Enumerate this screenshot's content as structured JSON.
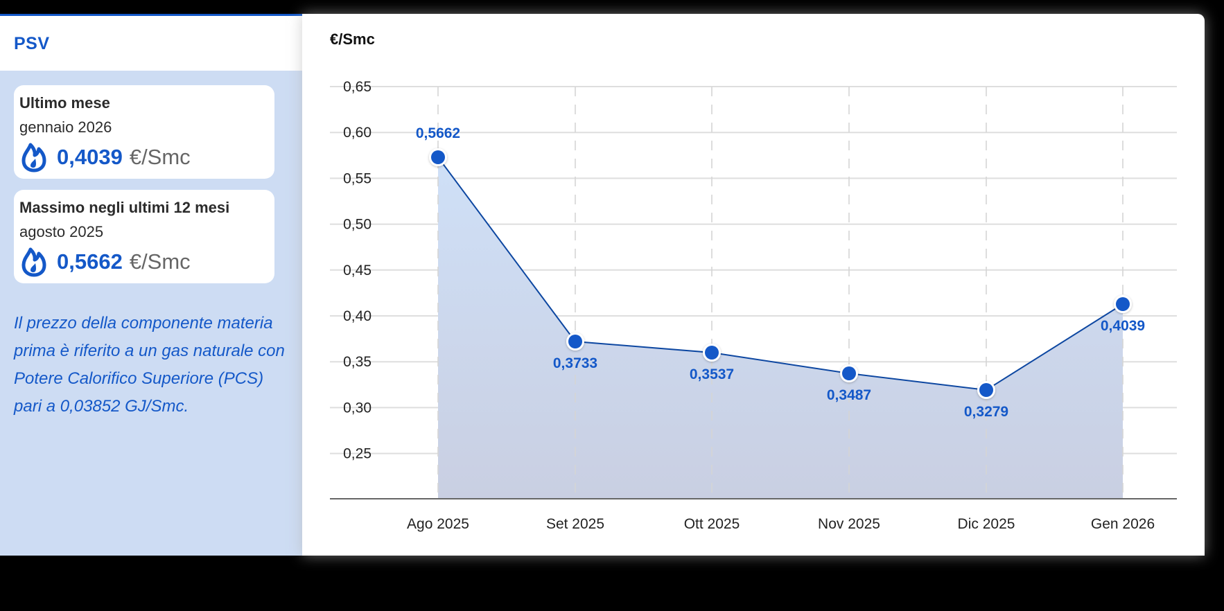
{
  "panel": {
    "title": "PSV",
    "cards": [
      {
        "title": "Ultimo mese",
        "date": "gennaio 2026",
        "value": "0,4039",
        "unit": "€/Smc",
        "icon": "gas-flame-icon"
      },
      {
        "title": "Massimo negli ultimi 12 mesi",
        "date": "agosto 2025",
        "value": "0,5662",
        "unit": "€/Smc",
        "icon": "gas-flame-icon"
      }
    ],
    "note": "Il prezzo della componente materia prima è riferito a un gas naturale con Potere Calorifico Superiore (PCS) pari a 0,03852 GJ/Smc."
  },
  "colors": {
    "accent": "#1458c8",
    "panel_bg": "#cddcf3",
    "fill_top": "#cfe0f7",
    "fill_bottom": "#c9cfe2",
    "line": "#0d47a1"
  },
  "chart_data": {
    "type": "area",
    "title": "",
    "ylabel": "€/Smc",
    "xlabel": "",
    "categories": [
      "Ago 2025",
      "Set 2025",
      "Ott 2025",
      "Nov 2025",
      "Dic 2025",
      "Gen 2026"
    ],
    "series": [
      {
        "name": "PSV",
        "values": [
          0.5662,
          0.3733,
          0.3537,
          0.3487,
          0.3279,
          0.4039
        ]
      }
    ],
    "data_labels": [
      "0,5662",
      "0,3733",
      "0,3537",
      "0,3487",
      "0,3279",
      "0,4039"
    ],
    "yticks": [
      "0,65",
      "0,60",
      "0,55",
      "0,50",
      "0,45",
      "0,40",
      "0,35",
      "0,30",
      "0,25"
    ],
    "ylim": [
      0.2,
      0.65
    ],
    "grid": true,
    "legend": "none"
  }
}
